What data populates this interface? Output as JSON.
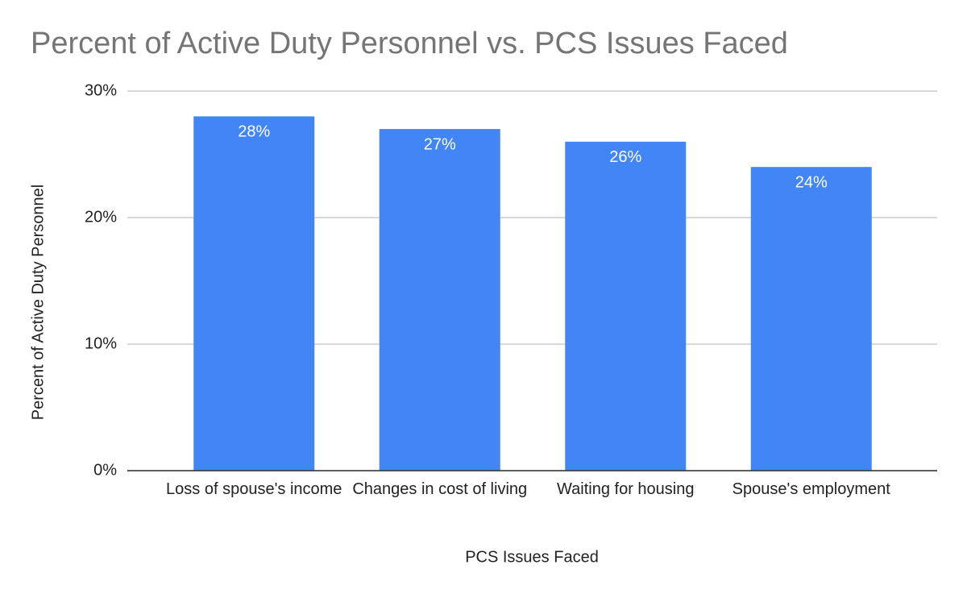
{
  "chart_data": {
    "type": "bar",
    "title": "Percent of Active Duty Personnel vs. PCS Issues Faced",
    "x_label": "PCS Issues Faced",
    "y_label": "Percent of Active Duty Personnel",
    "categories": [
      "Loss of spouse's income",
      "Changes in cost of living",
      "Waiting for housing",
      "Spouse's employment"
    ],
    "values": [
      28,
      27,
      26,
      24
    ],
    "value_labels": [
      "28%",
      "27%",
      "26%",
      "24%"
    ],
    "color": "#4285f4",
    "ylim": [
      0,
      30
    ],
    "yticks": [
      {
        "value": 0,
        "label": "0%"
      },
      {
        "value": 10,
        "label": "10%"
      },
      {
        "value": 20,
        "label": "20%"
      },
      {
        "value": 30,
        "label": "30%"
      }
    ],
    "grid": true
  }
}
